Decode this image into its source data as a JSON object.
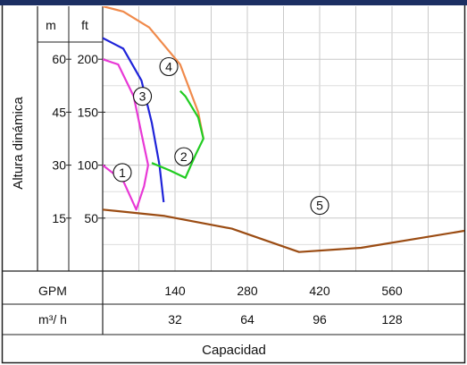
{
  "chart_data": {
    "type": "line",
    "title": "",
    "ylabel": "Altura dinámica",
    "xlabel": "Capacidad",
    "y_units": [
      "m",
      "ft"
    ],
    "y_ticks_m": [
      60,
      45,
      30,
      15
    ],
    "y_ticks_ft": [
      200,
      150,
      100,
      50
    ],
    "x_rows": [
      {
        "unit": "GPM",
        "ticks": [
          140,
          280,
          420,
          560
        ]
      },
      {
        "unit": "m³/ h",
        "ticks": [
          32,
          64,
          96,
          128
        ]
      }
    ],
    "xlim_gpm": [
      0,
      700
    ],
    "ylim_ft": [
      0,
      250
    ],
    "grid": true,
    "series": [
      {
        "name": "1",
        "color": "#e838d6",
        "x": [
          0,
          40,
          65,
          80,
          88
        ],
        "y": [
          100,
          85,
          58,
          80,
          100
        ]
      },
      {
        "name": "1",
        "color": "#e838d6",
        "x": [
          0,
          30,
          60,
          75,
          88
        ],
        "y": [
          200,
          195,
          165,
          130,
          100
        ]
      },
      {
        "name": "3",
        "color": "#1f23d9",
        "x": [
          0,
          40,
          75,
          95,
          110,
          118
        ],
        "y": [
          220,
          210,
          180,
          140,
          100,
          65
        ]
      },
      {
        "name": "4",
        "color": "#f08a4b",
        "x": [
          0,
          40,
          90,
          150,
          185,
          195
        ],
        "y": [
          250,
          245,
          230,
          195,
          150,
          125
        ]
      },
      {
        "name": "2",
        "color": "#21cc21",
        "x": [
          95,
          130,
          160,
          180,
          195,
          185,
          160,
          150
        ],
        "y": [
          102,
          95,
          88,
          110,
          125,
          145,
          165,
          170
        ]
      },
      {
        "name": "5",
        "color": "#9b4c13",
        "x": [
          0,
          120,
          250,
          380,
          500,
          700
        ],
        "y": [
          58,
          52,
          40,
          18,
          22,
          38
        ]
      }
    ],
    "circle_labels": [
      "1",
      "2",
      "3",
      "4",
      "5"
    ]
  }
}
